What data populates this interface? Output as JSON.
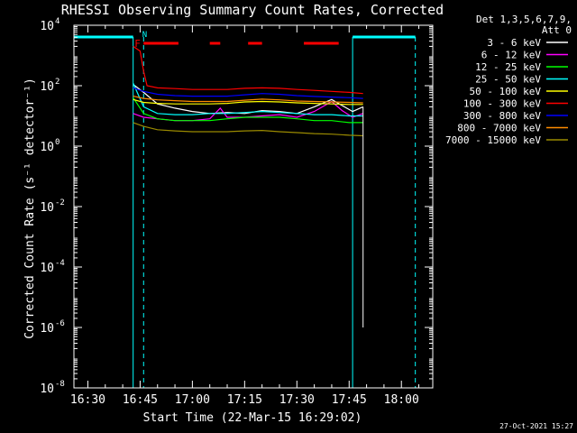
{
  "chart_data": {
    "type": "line",
    "title": "RHESSI Observing Summary Count Rates, Corrected",
    "xlabel": "Start Time (22-Mar-15 16:29:02)",
    "ylabel": "Corrected Count Rate (s⁻¹ detector⁻¹)",
    "y_scale": "log",
    "ylim": [
      1e-08,
      10000
    ],
    "xlim": [
      "16:26",
      "18:09"
    ],
    "x_ticks": [
      "16:30",
      "16:45",
      "17:00",
      "17:15",
      "17:30",
      "17:45",
      "18:00"
    ],
    "y_ticks": [
      {
        "exp": -8,
        "label_base": "10",
        "label_exp": "-8"
      },
      {
        "exp": -6,
        "label_base": "10",
        "label_exp": "-6"
      },
      {
        "exp": -4,
        "label_base": "10",
        "label_exp": "-4"
      },
      {
        "exp": -2,
        "label_base": "10",
        "label_exp": "-2"
      },
      {
        "exp": 0,
        "label_base": "10",
        "label_exp": "0"
      },
      {
        "exp": 2,
        "label_base": "10",
        "label_exp": "2"
      },
      {
        "exp": 4,
        "label_base": "10",
        "label_exp": "4"
      }
    ],
    "grid": false,
    "legend_header": [
      "Det 1,3,5,6,7,9,",
      "Att 0"
    ],
    "legend_placement": "right",
    "series": [
      {
        "name": "3 - 6 keV",
        "color": "#ffffff",
        "points": [
          [
            "16:43",
            110
          ],
          [
            "16:46",
            60
          ],
          [
            "16:50",
            25
          ],
          [
            "16:55",
            18
          ],
          [
            "17:00",
            14
          ],
          [
            "17:05",
            12
          ],
          [
            "17:10",
            13
          ],
          [
            "17:15",
            12
          ],
          [
            "17:20",
            15
          ],
          [
            "17:25",
            14
          ],
          [
            "17:30",
            12
          ],
          [
            "17:35",
            20
          ],
          [
            "17:40",
            35
          ],
          [
            "17:43",
            22
          ],
          [
            "17:46",
            14
          ],
          [
            "17:49",
            20
          ]
        ]
      },
      {
        "name": "6 - 12 keV",
        "color": "#ff00ff",
        "points": [
          [
            "16:43",
            12
          ],
          [
            "16:46",
            9
          ],
          [
            "16:50",
            8
          ],
          [
            "16:55",
            7
          ],
          [
            "17:00",
            7
          ],
          [
            "17:05",
            8
          ],
          [
            "17:08",
            18
          ],
          [
            "17:10",
            9
          ],
          [
            "17:15",
            9
          ],
          [
            "17:20",
            10
          ],
          [
            "17:25",
            11
          ],
          [
            "17:30",
            9
          ],
          [
            "17:35",
            14
          ],
          [
            "17:40",
            30
          ],
          [
            "17:43",
            15
          ],
          [
            "17:46",
            9
          ],
          [
            "17:49",
            12
          ]
        ]
      },
      {
        "name": "12 - 25 keV",
        "color": "#00ff00",
        "points": [
          [
            "16:43",
            40
          ],
          [
            "16:46",
            12
          ],
          [
            "16:50",
            8
          ],
          [
            "16:55",
            7
          ],
          [
            "17:00",
            7
          ],
          [
            "17:05",
            7
          ],
          [
            "17:10",
            8
          ],
          [
            "17:15",
            9
          ],
          [
            "17:20",
            9
          ],
          [
            "17:25",
            9
          ],
          [
            "17:30",
            8
          ],
          [
            "17:35",
            7
          ],
          [
            "17:40",
            7
          ],
          [
            "17:45",
            6
          ],
          [
            "17:49",
            6
          ]
        ]
      },
      {
        "name": "25 - 50 keV",
        "color": "#00ffff",
        "points": [
          [
            "16:43",
            120
          ],
          [
            "16:46",
            20
          ],
          [
            "16:50",
            12
          ],
          [
            "16:55",
            11
          ],
          [
            "17:00",
            11
          ],
          [
            "17:05",
            12
          ],
          [
            "17:10",
            12
          ],
          [
            "17:15",
            13
          ],
          [
            "17:20",
            14
          ],
          [
            "17:25",
            13
          ],
          [
            "17:30",
            12
          ],
          [
            "17:35",
            11
          ],
          [
            "17:40",
            11
          ],
          [
            "17:45",
            10
          ],
          [
            "17:49",
            10
          ]
        ]
      },
      {
        "name": "50 - 100 keV",
        "color": "#ffff00",
        "points": [
          [
            "16:43",
            35
          ],
          [
            "16:46",
            28
          ],
          [
            "16:50",
            26
          ],
          [
            "16:55",
            25
          ],
          [
            "17:00",
            25
          ],
          [
            "17:05",
            25
          ],
          [
            "17:10",
            26
          ],
          [
            "17:15",
            29
          ],
          [
            "17:20",
            30
          ],
          [
            "17:25",
            29
          ],
          [
            "17:30",
            27
          ],
          [
            "17:35",
            26
          ],
          [
            "17:40",
            25
          ],
          [
            "17:45",
            24
          ],
          [
            "17:49",
            24
          ]
        ]
      },
      {
        "name": "100 - 300 keV",
        "color": "#ff0000",
        "points": [
          [
            "16:43",
            2000
          ],
          [
            "16:45",
            1400
          ],
          [
            "16:46",
            300
          ],
          [
            "16:47",
            100
          ],
          [
            "16:50",
            85
          ],
          [
            "16:55",
            80
          ],
          [
            "17:00",
            75
          ],
          [
            "17:05",
            75
          ],
          [
            "17:10",
            75
          ],
          [
            "17:15",
            82
          ],
          [
            "17:20",
            85
          ],
          [
            "17:25",
            82
          ],
          [
            "17:30",
            75
          ],
          [
            "17:35",
            70
          ],
          [
            "17:40",
            65
          ],
          [
            "17:45",
            60
          ],
          [
            "17:49",
            55
          ]
        ]
      },
      {
        "name": "300 - 800 keV",
        "color": "#0000ff",
        "points": [
          [
            "16:43",
            85
          ],
          [
            "16:46",
            65
          ],
          [
            "16:50",
            52
          ],
          [
            "16:55",
            47
          ],
          [
            "17:00",
            45
          ],
          [
            "17:05",
            45
          ],
          [
            "17:10",
            45
          ],
          [
            "17:15",
            50
          ],
          [
            "17:20",
            55
          ],
          [
            "17:25",
            52
          ],
          [
            "17:30",
            47
          ],
          [
            "17:35",
            44
          ],
          [
            "17:40",
            42
          ],
          [
            "17:45",
            40
          ],
          [
            "17:49",
            38
          ]
        ]
      },
      {
        "name": "800 - 7000 keV",
        "color": "#ff8c00",
        "points": [
          [
            "16:43",
            45
          ],
          [
            "16:46",
            38
          ],
          [
            "16:50",
            34
          ],
          [
            "16:55",
            32
          ],
          [
            "17:00",
            30
          ],
          [
            "17:05",
            30
          ],
          [
            "17:10",
            30
          ],
          [
            "17:15",
            33
          ],
          [
            "17:20",
            36
          ],
          [
            "17:25",
            34
          ],
          [
            "17:30",
            31
          ],
          [
            "17:35",
            30
          ],
          [
            "17:40",
            29
          ],
          [
            "17:45",
            28
          ],
          [
            "17:49",
            27
          ]
        ]
      },
      {
        "name": "7000 - 15000 keV",
        "color": "#9a8a00",
        "points": [
          [
            "16:43",
            6
          ],
          [
            "16:46",
            4.5
          ],
          [
            "16:50",
            3.5
          ],
          [
            "16:55",
            3.2
          ],
          [
            "17:00",
            3
          ],
          [
            "17:05",
            3
          ],
          [
            "17:10",
            3
          ],
          [
            "17:15",
            3.2
          ],
          [
            "17:20",
            3.3
          ],
          [
            "17:25",
            3
          ],
          [
            "17:30",
            2.8
          ],
          [
            "17:35",
            2.6
          ],
          [
            "17:40",
            2.5
          ],
          [
            "17:45",
            2.3
          ],
          [
            "17:49",
            2.2
          ]
        ]
      }
    ],
    "annotations": {
      "night_bars": [
        [
          "16:26",
          "16:43"
        ],
        [
          "17:46",
          "18:04"
        ]
      ],
      "night_label": "N",
      "night_color": "#00ffff",
      "night_solid_lines": [
        "16:43",
        "17:46"
      ],
      "night_dashed_lines": [
        "16:46",
        "18:04"
      ],
      "flare_flag_label": "F",
      "flare_segments": [
        [
          "16:46",
          "16:56"
        ],
        [
          "17:05",
          "17:08"
        ],
        [
          "17:16",
          "17:20"
        ],
        [
          "17:32",
          "17:42"
        ]
      ],
      "flare_color": "#ff0000",
      "data_end_line": {
        "time": "17:49",
        "to": 1e-06
      }
    },
    "timestamp": "27-Oct-2021 15:27"
  }
}
